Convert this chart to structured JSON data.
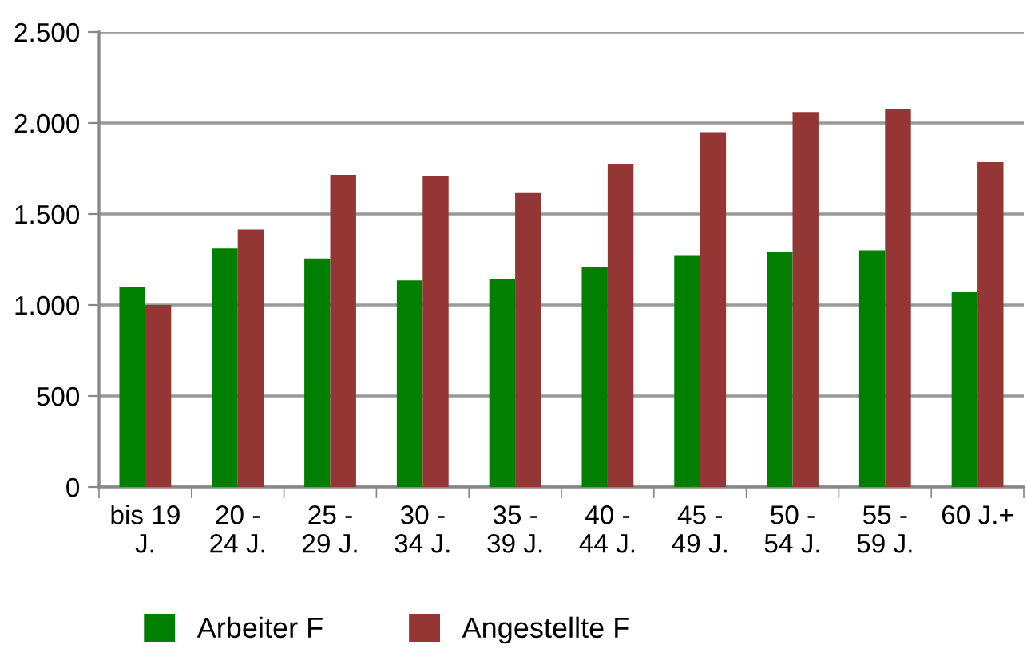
{
  "chart_data": {
    "type": "bar",
    "categories": [
      "bis 19 J.",
      "20 - 24 J.",
      "25 - 29 J.",
      "30 - 34 J.",
      "35 - 39 J.",
      "40 - 44 J.",
      "45 - 49 J.",
      "50 - 54 J.",
      "55 - 59 J.",
      "60 J.+"
    ],
    "series": [
      {
        "name": "Arbeiter F",
        "color": "#007f00",
        "values": [
          1100,
          1310,
          1255,
          1135,
          1145,
          1210,
          1270,
          1290,
          1300,
          1070
        ]
      },
      {
        "name": "Angestellte F",
        "color": "#943634",
        "values": [
          1000,
          1415,
          1715,
          1710,
          1615,
          1775,
          1950,
          2060,
          2075,
          1785
        ]
      }
    ],
    "ylim": [
      0,
      2500
    ],
    "yticks": [
      {
        "value": 0,
        "label": "0"
      },
      {
        "value": 500,
        "label": "500"
      },
      {
        "value": 1000,
        "label": "1.000"
      },
      {
        "value": 1500,
        "label": "1.500"
      },
      {
        "value": 2000,
        "label": "2.000"
      },
      {
        "value": 2500,
        "label": "2.500"
      }
    ],
    "grid": "y",
    "legend": "bottom left"
  }
}
